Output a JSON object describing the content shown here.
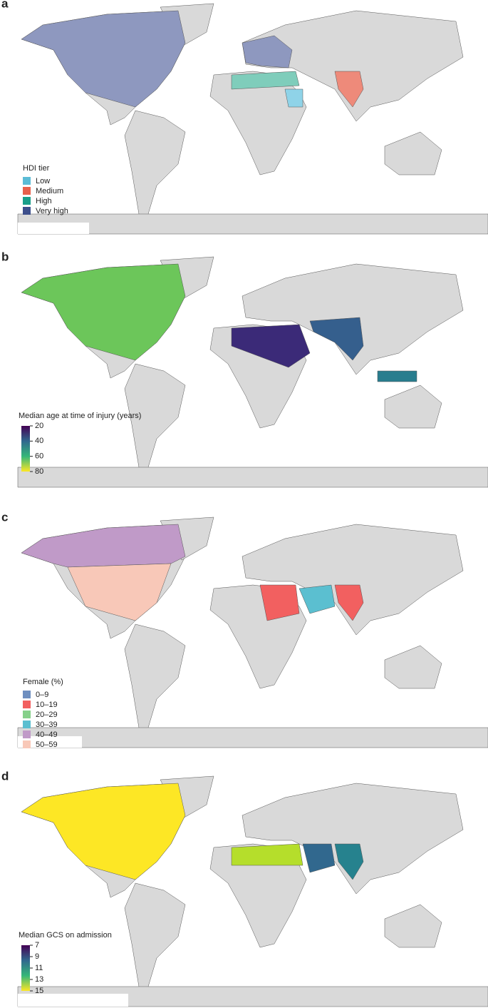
{
  "panels": [
    {
      "label": "a",
      "legend": {
        "title": "HDI tier",
        "entries": [
          {
            "label": "Low",
            "color": "#5bbcd6"
          },
          {
            "label": "Medium",
            "color": "#e8604c"
          },
          {
            "label": "High",
            "color": "#1a9e8a"
          },
          {
            "label": "Very high",
            "color": "#3d4f8c"
          }
        ]
      }
    },
    {
      "label": "b",
      "colorbar": {
        "title": "Median age at time of injury (years)",
        "ticks": [
          20,
          40,
          60,
          80
        ],
        "colors": [
          "#440154",
          "#31688e",
          "#35b779",
          "#fde725"
        ]
      }
    },
    {
      "label": "c",
      "legend": {
        "title": "Female (%)",
        "entries": [
          {
            "label": "0–9",
            "color": "#6f8fc0"
          },
          {
            "label": "10–19",
            "color": "#f26060"
          },
          {
            "label": "20–29",
            "color": "#86d08a"
          },
          {
            "label": "30–39",
            "color": "#5bbfd0"
          },
          {
            "label": "40–49",
            "color": "#c09ac8"
          },
          {
            "label": "50–59",
            "color": "#f8c8b8"
          }
        ]
      }
    },
    {
      "label": "d",
      "colorbar": {
        "title": "Median GCS on admission",
        "ticks": [
          7,
          9,
          11,
          13,
          15
        ],
        "colors": [
          "#440154",
          "#31688e",
          "#35b779",
          "#fde725"
        ]
      }
    }
  ]
}
